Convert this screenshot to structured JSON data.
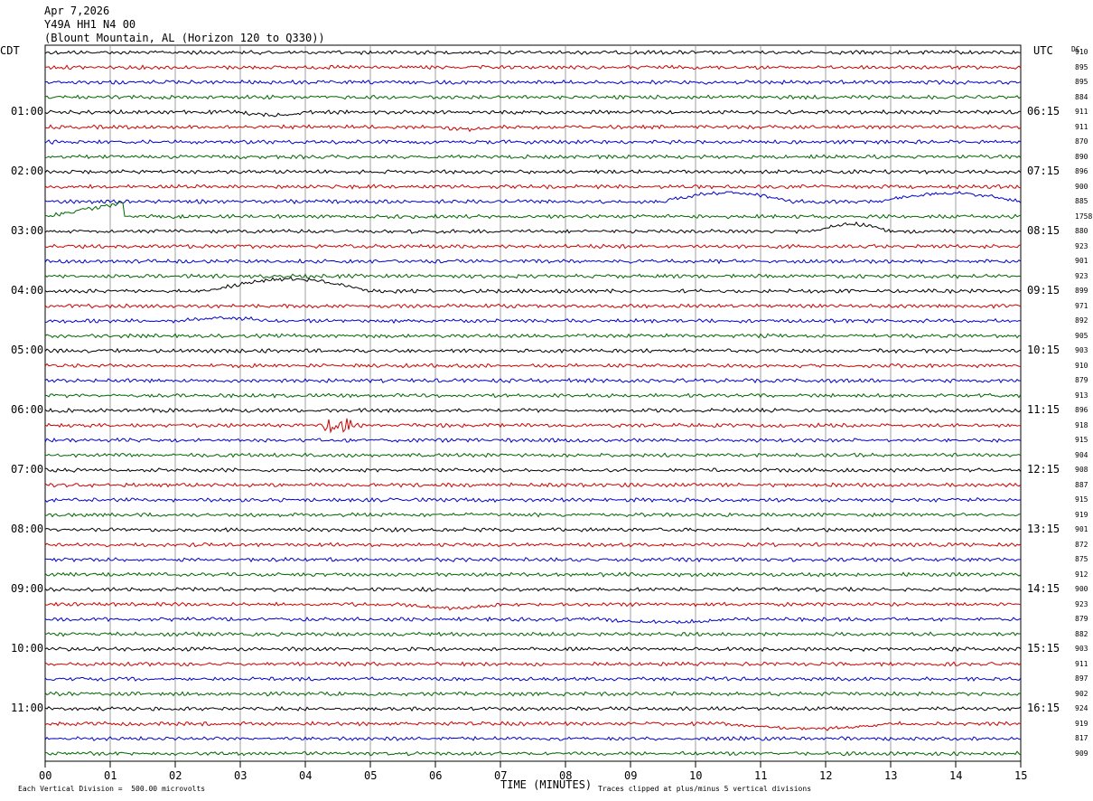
{
  "header": {
    "date": "Apr 7,2026",
    "station": "Y49A HH1 N4 00",
    "location": "(Blount Mountain, AL (Horizon 120 to Q330))"
  },
  "left_axis_label": "CDT",
  "right_axis_label": "UTC",
  "dc_label": "DC",
  "footer": {
    "scale_note": "Each Vertical Division =  500.00 microvolts",
    "xlabel": "TIME (MINUTES)",
    "clip_note": "Traces clipped at plus/minus 5 vertical divisions"
  },
  "colors": {
    "trace_cycle": [
      "#000000",
      "#cc0000",
      "#0000cc",
      "#006600"
    ],
    "grid": "#888888"
  },
  "chart_data": {
    "type": "line",
    "title": "Apr 7,2026",
    "xlabel": "TIME (MINUTES)",
    "xlim": [
      0,
      15
    ],
    "x_ticks": [
      "00",
      "01",
      "02",
      "03",
      "04",
      "05",
      "06",
      "07",
      "08",
      "09",
      "10",
      "11",
      "12",
      "13",
      "14",
      "15"
    ],
    "trace_count": 48,
    "left_time_labels": [
      {
        "row": 4,
        "text": "01:00"
      },
      {
        "row": 8,
        "text": "02:00"
      },
      {
        "row": 12,
        "text": "03:00"
      },
      {
        "row": 16,
        "text": "04:00"
      },
      {
        "row": 20,
        "text": "05:00"
      },
      {
        "row": 24,
        "text": "06:00"
      },
      {
        "row": 28,
        "text": "07:00"
      },
      {
        "row": 32,
        "text": "08:00"
      },
      {
        "row": 36,
        "text": "09:00"
      },
      {
        "row": 40,
        "text": "10:00"
      },
      {
        "row": 44,
        "text": "11:00"
      }
    ],
    "right_time_labels": [
      {
        "row": 4,
        "text": "06:15"
      },
      {
        "row": 8,
        "text": "07:15"
      },
      {
        "row": 12,
        "text": "08:15"
      },
      {
        "row": 16,
        "text": "09:15"
      },
      {
        "row": 20,
        "text": "10:15"
      },
      {
        "row": 24,
        "text": "11:15"
      },
      {
        "row": 28,
        "text": "12:15"
      },
      {
        "row": 32,
        "text": "13:15"
      },
      {
        "row": 36,
        "text": "14:15"
      },
      {
        "row": 40,
        "text": "15:15"
      },
      {
        "row": 44,
        "text": "16:15"
      }
    ],
    "dc_offsets": [
      "910",
      "895",
      "895",
      "884",
      "911",
      "911",
      "870",
      "890",
      "896",
      "900",
      "885",
      "1758",
      "880",
      "923",
      "901",
      "923",
      "899",
      "971",
      "892",
      "905",
      "903",
      "910",
      "879",
      "913",
      "896",
      "918",
      "915",
      "904",
      "908",
      "887",
      "915",
      "919",
      "901",
      "872",
      "875",
      "912",
      "900",
      "923",
      "879",
      "882",
      "903",
      "911",
      "897",
      "902",
      "924",
      "919",
      "817",
      "909"
    ],
    "events": [
      {
        "row": 4,
        "x_start": 3.0,
        "x_end": 4.0,
        "shape": "dip",
        "amplitude": -0.2
      },
      {
        "row": 5,
        "x_start": 6.0,
        "x_end": 7.0,
        "shape": "dip",
        "amplitude": -0.15
      },
      {
        "row": 10,
        "x_start": 9.5,
        "x_end": 11.5,
        "shape": "bump",
        "amplitude": 0.6
      },
      {
        "row": 10,
        "x_start": 12.8,
        "x_end": 15.0,
        "shape": "bump",
        "amplitude": 0.55
      },
      {
        "row": 11,
        "x_start": 0.0,
        "x_end": 1.2,
        "shape": "ramp",
        "amplitude": 0.9
      },
      {
        "row": 12,
        "x_start": 11.8,
        "x_end": 13.0,
        "shape": "bump",
        "amplitude": 0.5
      },
      {
        "row": 16,
        "x_start": 2.5,
        "x_end": 5.0,
        "shape": "bump",
        "amplitude": 0.8
      },
      {
        "row": 18,
        "x_start": 2.0,
        "x_end": 3.5,
        "shape": "bump",
        "amplitude": 0.2
      },
      {
        "row": 25,
        "x_start": 4.3,
        "x_end": 4.7,
        "shape": "burst",
        "amplitude": 0.5
      },
      {
        "row": 37,
        "x_start": 5.5,
        "x_end": 7.0,
        "shape": "dip",
        "amplitude": -0.25
      },
      {
        "row": 38,
        "x_start": 8.5,
        "x_end": 10.5,
        "shape": "dip",
        "amplitude": -0.2
      },
      {
        "row": 45,
        "x_start": 10.5,
        "x_end": 13.0,
        "shape": "dip",
        "amplitude": -0.35
      }
    ]
  }
}
